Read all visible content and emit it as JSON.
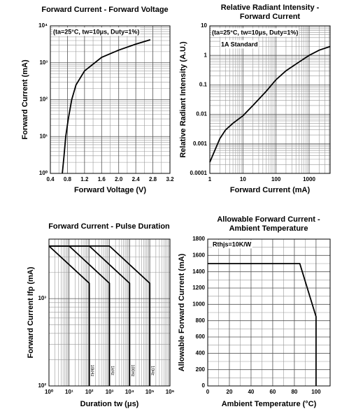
{
  "chart_data": [
    {
      "type": "line",
      "title": [
        "Forward Current - Forward Voltage"
      ],
      "x_label": "Forward Voltage (V)",
      "y_label": "Forward Current (mA)",
      "annotations": [
        "(ta=25°C, tw=10μs, Duty=1%)"
      ],
      "xlim": [
        0.4,
        3.2
      ],
      "xticks": [
        0.4,
        0.8,
        1.2,
        1.6,
        {
          "value": 2,
          "label": "2.0"
        },
        2.4,
        2.8,
        3.2
      ],
      "ylim": [
        1,
        10000
      ],
      "y_log": true,
      "yticks": [
        {
          "value": 1,
          "label": "10⁰"
        },
        {
          "value": 10,
          "label": "10¹"
        },
        {
          "value": 100,
          "label": "10²"
        },
        {
          "value": 1000,
          "label": "10³"
        },
        {
          "value": 10000,
          "label": "10⁴"
        }
      ],
      "grid": true,
      "series": [
        {
          "color": "#000000",
          "x": [
            0.68,
            0.72,
            0.76,
            0.82,
            0.9,
            1.0,
            1.2,
            1.6,
            2.0,
            2.4,
            2.74
          ],
          "values": [
            1,
            3,
            10,
            30,
            100,
            250,
            600,
            1400,
            2200,
            3200,
            4200
          ]
        }
      ]
    },
    {
      "type": "line",
      "title": [
        "Relative Radiant Intensity -",
        "Forward Current"
      ],
      "x_label": "Forward Current (mA)",
      "y_label": "Relative Radiant Intensity (A.U.)",
      "annotations": [
        "(ta=25°C, tw=10μs, Duty=1%)",
        "1A Standard"
      ],
      "xlim": [
        1,
        4300
      ],
      "x_log": true,
      "xticks": [
        1,
        10,
        100,
        1000
      ],
      "ylim": [
        0.0001,
        10
      ],
      "y_log": true,
      "yticks": [
        0.0001,
        0.001,
        0.01,
        0.1,
        1,
        10
      ],
      "grid": true,
      "series": [
        {
          "color": "#000000",
          "x": [
            1,
            2,
            3,
            5,
            10,
            20,
            50,
            100,
            200,
            500,
            1000,
            2000,
            4300
          ],
          "values": [
            0.00024,
            0.0015,
            0.003,
            0.005,
            0.009,
            0.02,
            0.06,
            0.15,
            0.3,
            0.6,
            1,
            1.5,
            2
          ]
        }
      ]
    },
    {
      "type": "line",
      "title": [
        "Forward Current - Pulse Duration"
      ],
      "x_label": "Duration tw (μs)",
      "y_label": "Forward Current Ifp (mA)",
      "xlim": [
        1,
        1000000
      ],
      "x_log": true,
      "xticks": [
        {
          "value": 1,
          "label": "10⁰"
        },
        {
          "value": 10,
          "label": "10¹"
        },
        {
          "value": 100,
          "label": "10²"
        },
        {
          "value": 1000,
          "label": "10³"
        },
        {
          "value": 10000,
          "label": "10⁴"
        },
        {
          "value": 100000,
          "label": "10⁵"
        },
        {
          "value": 1000000,
          "label": "10⁶"
        }
      ],
      "ylim": [
        100,
        4800
      ],
      "y_log": true,
      "yticks": [
        {
          "value": 100,
          "label": "10²"
        },
        {
          "value": 1000,
          "label": "10³"
        }
      ],
      "grid": true,
      "series": [
        {
          "name": "10kHz",
          "color": "#000000",
          "x": [
            1,
            100,
            100
          ],
          "values": [
            4000,
            1500,
            100
          ]
        },
        {
          "name": "1kHz",
          "color": "#000000",
          "x": [
            1,
            10,
            1000,
            1000
          ],
          "values": [
            4000,
            4000,
            1500,
            100
          ]
        },
        {
          "name": "100Hz",
          "color": "#000000",
          "x": [
            1,
            100,
            10000,
            10000
          ],
          "values": [
            4000,
            4000,
            1500,
            100
          ]
        },
        {
          "name": "10Hz",
          "color": "#000000",
          "x": [
            1,
            1000,
            100000,
            100000
          ],
          "values": [
            4000,
            4000,
            1500,
            100
          ]
        }
      ]
    },
    {
      "type": "line",
      "title": [
        "Allowable Forward Current -",
        "Ambient Temperature"
      ],
      "x_label": "Ambient Temperature (°C)",
      "y_label": "Allowable Forward Current (mA)",
      "annotations": [
        "Rthjs=10K/W"
      ],
      "xlim": [
        0,
        113
      ],
      "xticks": [
        0,
        20,
        40,
        60,
        80,
        100
      ],
      "ylim": [
        0,
        1800
      ],
      "yticks": [
        0,
        200,
        400,
        600,
        800,
        1000,
        1200,
        1400,
        1600,
        1800
      ],
      "grid": true,
      "series": [
        {
          "color": "#000000",
          "x": [
            0,
            85,
            100,
            100
          ],
          "values": [
            1500,
            1500,
            850,
            0
          ]
        }
      ]
    }
  ]
}
